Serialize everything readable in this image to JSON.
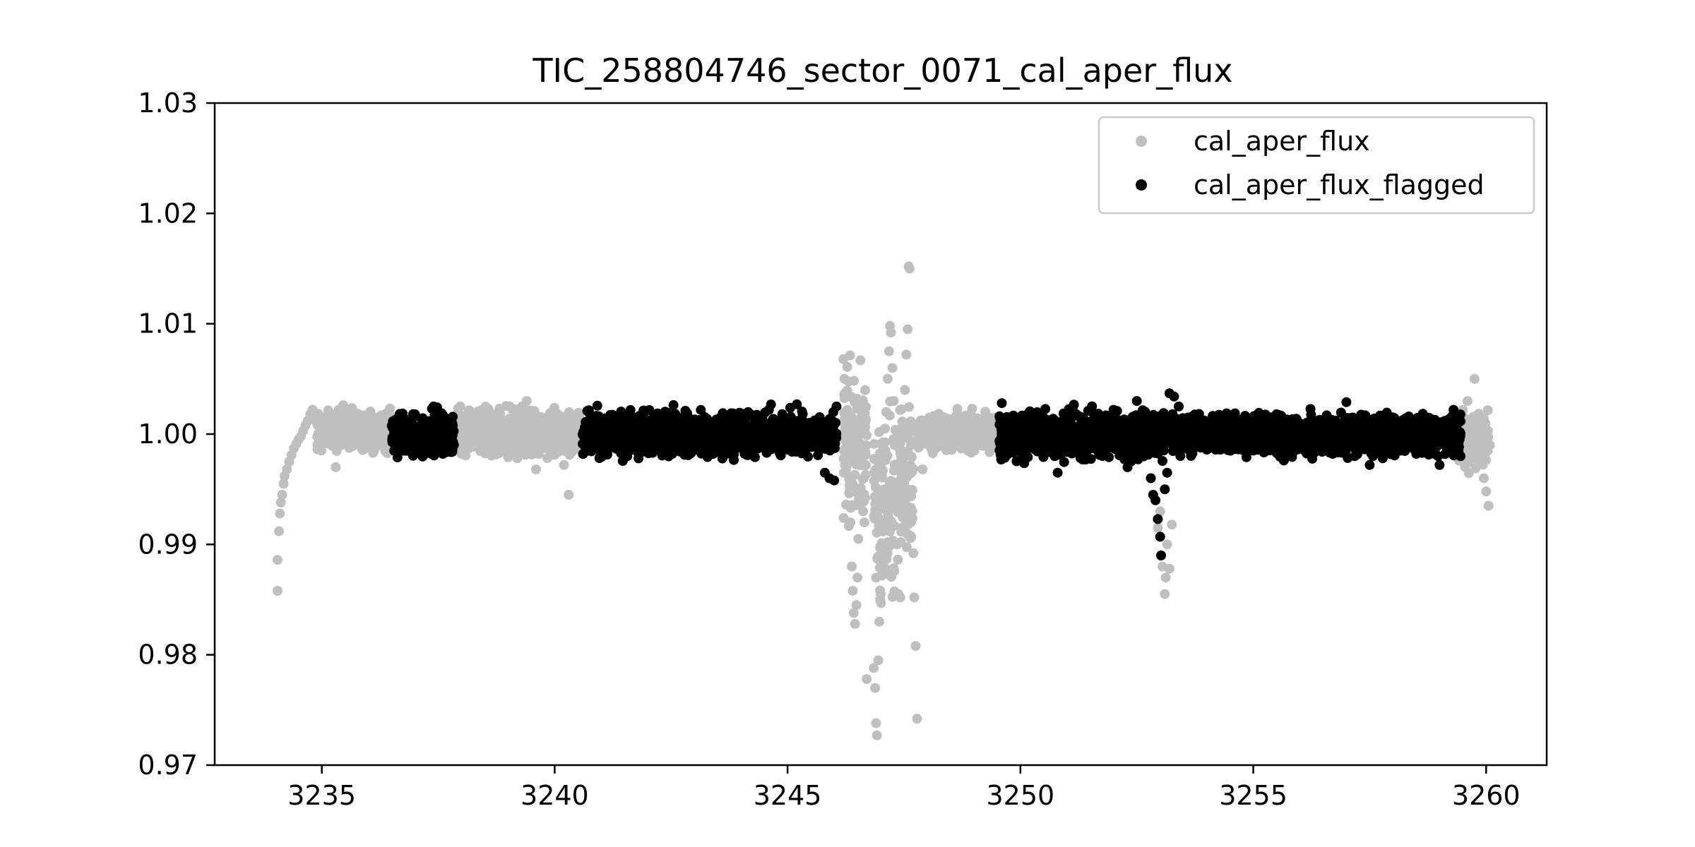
{
  "chart_data": {
    "type": "scatter",
    "title": "TIC_258804746_sector_0071_cal_aper_flux",
    "xlabel": "",
    "ylabel": "",
    "xlim": [
      3232.7,
      3261.3
    ],
    "ylim": [
      0.97,
      1.03
    ],
    "xticks": [
      {
        "value": 3235,
        "label": "3235"
      },
      {
        "value": 3240,
        "label": "3240"
      },
      {
        "value": 3245,
        "label": "3245"
      },
      {
        "value": 3250,
        "label": "3250"
      },
      {
        "value": 3255,
        "label": "3255"
      },
      {
        "value": 3260,
        "label": "3260"
      }
    ],
    "yticks": [
      {
        "value": 0.97,
        "label": "0.97"
      },
      {
        "value": 0.98,
        "label": "0.98"
      },
      {
        "value": 0.99,
        "label": "0.99"
      },
      {
        "value": 1.0,
        "label": "1.00"
      },
      {
        "value": 1.01,
        "label": "1.01"
      },
      {
        "value": 1.02,
        "label": "1.02"
      },
      {
        "value": 1.03,
        "label": "1.03"
      }
    ],
    "grid": false,
    "legend_position": "top-right",
    "series": [
      {
        "name": "cal_aper_flux",
        "color": "#bfbfbf",
        "points": [
          [
            3234.05,
            0.9858
          ],
          [
            3234.05,
            0.9886
          ],
          [
            3234.08,
            0.9912
          ],
          [
            3234.1,
            0.9928
          ],
          [
            3234.12,
            0.9938
          ],
          [
            3234.15,
            0.9945
          ],
          [
            3234.18,
            0.9955
          ],
          [
            3234.2,
            0.9962
          ],
          [
            3234.25,
            0.9968
          ],
          [
            3234.3,
            0.9975
          ],
          [
            3234.35,
            0.9981
          ],
          [
            3234.4,
            0.9987
          ],
          [
            3234.45,
            0.9991
          ],
          [
            3234.5,
            0.9995
          ],
          [
            3234.55,
            0.9998
          ],
          [
            3234.6,
            1.0003
          ],
          [
            3234.65,
            1.0008
          ],
          [
            3234.7,
            1.0012
          ],
          [
            3234.75,
            1.0018
          ],
          [
            3234.8,
            1.0022
          ],
          [
            3234.85,
            1.0015
          ],
          [
            3234.9,
            1.0009
          ],
          [
            3235.0,
            1.0004
          ],
          [
            3235.1,
            0.9998
          ],
          [
            3235.2,
            1.0011
          ],
          [
            3235.3,
            0.997
          ],
          [
            3235.4,
            1.0006
          ],
          [
            3235.5,
            0.9993
          ],
          [
            3235.6,
            1.0014
          ],
          [
            3235.7,
            1.0002
          ],
          [
            3235.8,
            0.999
          ],
          [
            3235.9,
            1.0017
          ],
          [
            3236.0,
            1.0001
          ],
          [
            3236.1,
            0.9995
          ],
          [
            3236.2,
            1.0012
          ],
          [
            3236.3,
            1.0004
          ],
          [
            3236.4,
            0.9992
          ],
          [
            3237.9,
            1.0005
          ],
          [
            3238.0,
            0.9982
          ],
          [
            3238.1,
            1.0011
          ],
          [
            3238.2,
            0.9994
          ],
          [
            3238.3,
            1.0008
          ],
          [
            3238.4,
            0.9986
          ],
          [
            3238.5,
            1.0015
          ],
          [
            3238.6,
            1.0001
          ],
          [
            3238.7,
            0.9992
          ],
          [
            3238.8,
            1.0018
          ],
          [
            3238.9,
            1.0004
          ],
          [
            3239.0,
            0.9979
          ],
          [
            3239.1,
            1.0022
          ],
          [
            3239.2,
            1.001
          ],
          [
            3239.3,
            0.9996
          ],
          [
            3239.4,
            1.003
          ],
          [
            3239.5,
            1.0006
          ],
          [
            3239.6,
            0.9968
          ],
          [
            3239.7,
            1.0013
          ],
          [
            3239.8,
            0.9999
          ],
          [
            3239.9,
            1.0019
          ],
          [
            3240.0,
            0.9985
          ],
          [
            3240.1,
            1.0008
          ],
          [
            3240.2,
            0.9972
          ],
          [
            3240.3,
            0.9945
          ],
          [
            3240.4,
            1.0016
          ],
          [
            3240.5,
            0.9992
          ],
          [
            3246.2,
            1.0068
          ],
          [
            3246.22,
            1.005
          ],
          [
            3246.25,
            1.0038
          ],
          [
            3246.28,
            1.0022
          ],
          [
            3246.3,
            0.9985
          ],
          [
            3246.32,
            0.996
          ],
          [
            3246.35,
            0.992
          ],
          [
            3246.38,
            0.988
          ],
          [
            3246.4,
            0.9858
          ],
          [
            3246.42,
            0.9838
          ],
          [
            3246.45,
            0.9828
          ],
          [
            3246.48,
            0.9845
          ],
          [
            3246.5,
            0.987
          ],
          [
            3246.52,
            0.9905
          ],
          [
            3246.55,
            0.994
          ],
          [
            3246.58,
            0.9975
          ],
          [
            3246.6,
            1.0002
          ],
          [
            3246.62,
            1.003
          ],
          [
            3246.65,
            0.992
          ],
          [
            3246.7,
            0.9778
          ],
          [
            3246.85,
            0.9788
          ],
          [
            3246.88,
            0.977
          ],
          [
            3246.9,
            0.9738
          ],
          [
            3246.92,
            0.9727
          ],
          [
            3246.95,
            0.9795
          ],
          [
            3246.97,
            0.983
          ],
          [
            3247.0,
            0.9855
          ],
          [
            3247.02,
            0.988
          ],
          [
            3247.05,
            0.9915
          ],
          [
            3247.08,
            0.995
          ],
          [
            3247.1,
            0.9985
          ],
          [
            3247.12,
            1.002
          ],
          [
            3247.15,
            1.005
          ],
          [
            3247.18,
            1.0075
          ],
          [
            3247.2,
            1.0098
          ],
          [
            3247.22,
            1.0092
          ],
          [
            3247.25,
            1.006
          ],
          [
            3247.28,
            1.003
          ],
          [
            3247.3,
            0.999
          ],
          [
            3247.32,
            0.9945
          ],
          [
            3247.35,
            0.99
          ],
          [
            3247.38,
            0.9855
          ],
          [
            3247.42,
            0.9852
          ],
          [
            3247.45,
            0.9915
          ],
          [
            3247.48,
            0.996
          ],
          [
            3247.5,
            1.001
          ],
          [
            3247.52,
            1.004
          ],
          [
            3247.55,
            1.0072
          ],
          [
            3247.58,
            1.0095
          ],
          [
            3247.6,
            1.0152
          ],
          [
            3247.62,
            1.015
          ],
          [
            3247.65,
            0.999
          ],
          [
            3247.68,
            0.993
          ],
          [
            3247.7,
            0.9892
          ],
          [
            3247.72,
            0.9852
          ],
          [
            3247.75,
            0.9808
          ],
          [
            3247.78,
            0.9742
          ],
          [
            3247.85,
            1.0002
          ],
          [
            3247.9,
            0.9968
          ],
          [
            3248.0,
            1.001
          ],
          [
            3248.1,
            0.9985
          ],
          [
            3248.2,
            1.0015
          ],
          [
            3248.3,
            0.9995
          ],
          [
            3248.4,
            1.0005
          ],
          [
            3248.5,
            0.9988
          ],
          [
            3248.6,
            1.0012
          ],
          [
            3248.7,
            0.9998
          ],
          [
            3248.8,
            1.0008
          ],
          [
            3248.9,
            0.9991
          ],
          [
            3249.0,
            1.0014
          ],
          [
            3249.1,
            1.0002
          ],
          [
            3249.2,
            0.9994
          ],
          [
            3249.3,
            1.0011
          ],
          [
            3249.4,
            0.9987
          ],
          [
            3252.95,
            0.9915
          ],
          [
            3253.0,
            0.993
          ],
          [
            3253.05,
            0.988
          ],
          [
            3253.1,
            0.9855
          ],
          [
            3253.12,
            0.987
          ],
          [
            3253.15,
            0.99
          ],
          [
            3253.2,
            0.9878
          ],
          [
            3253.25,
            0.9918
          ],
          [
            3259.5,
            1.0022
          ],
          [
            3259.55,
            1.001
          ],
          [
            3259.6,
            1.003
          ],
          [
            3259.65,
            1.0005
          ],
          [
            3259.7,
            0.9995
          ],
          [
            3259.75,
            1.005
          ],
          [
            3259.8,
            0.9985
          ],
          [
            3259.85,
            1.0012
          ],
          [
            3259.9,
            0.9975
          ],
          [
            3259.95,
            0.996
          ],
          [
            3260.0,
            0.9948
          ],
          [
            3260.05,
            0.9935
          ],
          [
            3260.08,
            0.999
          ]
        ],
        "bands": [
          {
            "x": [
              3234.9,
              3236.5
            ],
            "center": 1.0004,
            "spread": 0.0018
          },
          {
            "x": [
              3237.9,
              3240.55
            ],
            "center": 1.0001,
            "spread": 0.0021
          },
          {
            "x": [
              3246.2,
              3246.7
            ],
            "center": 0.999,
            "spread": 0.006
          },
          {
            "x": [
              3246.85,
              3247.38
            ],
            "center": 0.994,
            "spread": 0.008
          },
          {
            "x": [
              3247.4,
              3247.7
            ],
            "center": 0.996,
            "spread": 0.007
          },
          {
            "x": [
              3247.8,
              3249.5
            ],
            "center": 1.0002,
            "spread": 0.0016
          },
          {
            "x": [
              3259.4,
              3260.05
            ],
            "center": 0.9995,
            "spread": 0.0025
          }
        ]
      },
      {
        "name": "cal_aper_flux_flagged",
        "color": "#000000",
        "points": [
          [
            3236.6,
            1.0012
          ],
          [
            3236.8,
            0.9985
          ],
          [
            3237.0,
            1.0018
          ],
          [
            3237.2,
            0.999
          ],
          [
            3237.4,
            1.0025
          ],
          [
            3237.6,
            0.9982
          ],
          [
            3237.8,
            1.001
          ],
          [
            3240.7,
            1.0021
          ],
          [
            3241.0,
            0.9985
          ],
          [
            3241.5,
            1.0015
          ],
          [
            3241.8,
            0.9978
          ],
          [
            3242.2,
            1.0008
          ],
          [
            3242.5,
            0.999
          ],
          [
            3243.0,
            1.0012
          ],
          [
            3243.4,
            0.9982
          ],
          [
            3243.8,
            1.0018
          ],
          [
            3244.2,
            0.9988
          ],
          [
            3244.6,
            1.0022
          ],
          [
            3244.9,
            0.9995
          ],
          [
            3245.2,
            1.0027
          ],
          [
            3245.5,
            1.001
          ],
          [
            3245.8,
            0.9965
          ],
          [
            3245.9,
            0.996
          ],
          [
            3246.0,
            0.9958
          ],
          [
            3246.05,
            1.0025
          ],
          [
            3249.6,
            1.0028
          ],
          [
            3250.0,
            0.9985
          ],
          [
            3250.5,
            1.0012
          ],
          [
            3250.8,
            0.9965
          ],
          [
            3251.2,
            1.0018
          ],
          [
            3251.6,
            0.9988
          ],
          [
            3252.0,
            1.0022
          ],
          [
            3252.3,
            0.997
          ],
          [
            3252.5,
            1.003
          ],
          [
            3252.7,
            1.001
          ],
          [
            3252.8,
            0.996
          ],
          [
            3252.85,
            0.9945
          ],
          [
            3252.9,
            0.994
          ],
          [
            3252.95,
            0.9923
          ],
          [
            3253.0,
            0.9907
          ],
          [
            3253.02,
            0.989
          ],
          [
            3253.1,
            0.995
          ],
          [
            3253.15,
            0.9965
          ],
          [
            3253.2,
            1.0037
          ],
          [
            3253.3,
            1.0034
          ],
          [
            3253.4,
            1.0025
          ],
          [
            3253.6,
            1.0015
          ],
          [
            3254.0,
            0.999
          ],
          [
            3254.5,
            1.0012
          ],
          [
            3255.0,
            0.9985
          ],
          [
            3255.5,
            1.0018
          ],
          [
            3256.0,
            0.9992
          ],
          [
            3256.5,
            1.0008
          ],
          [
            3257.0,
            1.0029
          ],
          [
            3257.3,
            0.9995
          ],
          [
            3257.5,
            0.9972
          ],
          [
            3258.0,
            1.0015
          ],
          [
            3258.5,
            0.9982
          ],
          [
            3258.8,
            1.0012
          ],
          [
            3259.0,
            0.9972
          ],
          [
            3259.3,
            1.0022
          ],
          [
            3259.45,
            0.998
          ]
        ],
        "bands": [
          {
            "x": [
              3236.5,
              3237.85
            ],
            "center": 0.9999,
            "spread": 0.0019
          },
          {
            "x": [
              3240.6,
              3246.05
            ],
            "center": 1.0,
            "spread": 0.0019
          },
          {
            "x": [
              3249.55,
              3253.5
            ],
            "center": 0.9999,
            "spread": 0.0021
          },
          {
            "x": [
              3253.55,
              3259.45
            ],
            "center": 1.0,
            "spread": 0.0018
          }
        ]
      }
    ]
  }
}
